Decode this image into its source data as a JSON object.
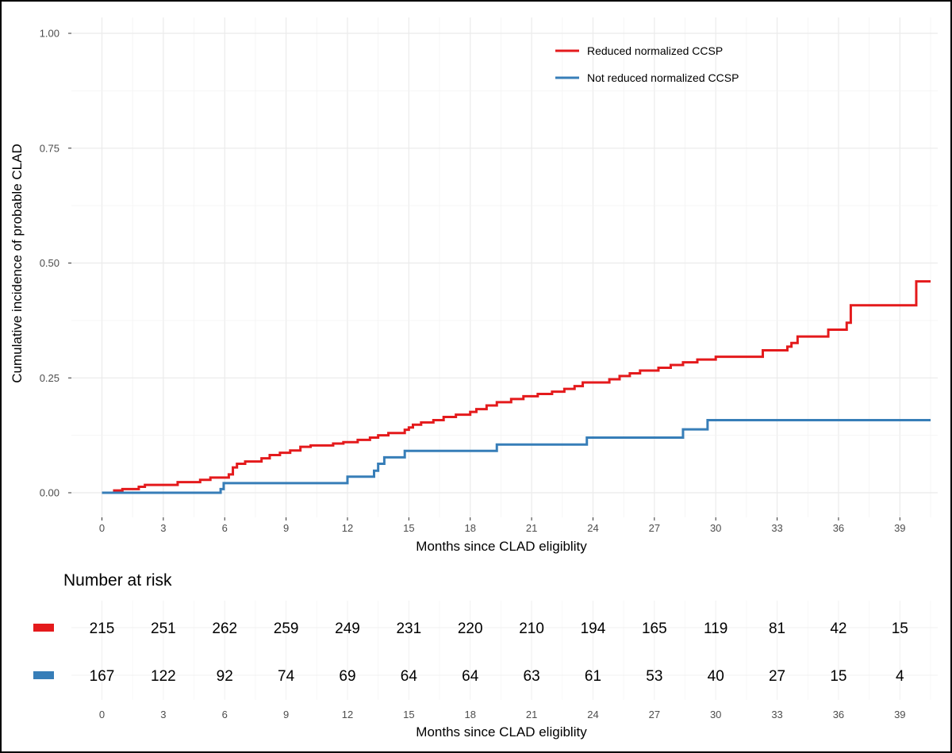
{
  "chart_data": {
    "type": "line",
    "subtype": "step",
    "ylabel": "Cumulative incidence of probable CLAD",
    "xlabel": "Months since CLAD eligiblity",
    "ylim": [
      0,
      1.0
    ],
    "xlim": [
      0,
      40.5
    ],
    "yticks": [
      "0.00",
      "0.25",
      "0.50",
      "0.75",
      "1.00"
    ],
    "ytick_values": [
      0,
      0.25,
      0.5,
      0.75,
      1.0
    ],
    "xticks": [
      "0",
      "3",
      "6",
      "9",
      "12",
      "15",
      "18",
      "21",
      "24",
      "27",
      "30",
      "33",
      "36",
      "39"
    ],
    "xtick_values": [
      0,
      3,
      6,
      9,
      12,
      15,
      18,
      21,
      24,
      27,
      30,
      33,
      36,
      39
    ],
    "legend_position": "top-right",
    "series": [
      {
        "name": "Reduced normalized CCSP",
        "color": "#e41a1c",
        "points": [
          [
            0,
            0
          ],
          [
            0.6,
            0.005
          ],
          [
            1.0,
            0.008
          ],
          [
            1.8,
            0.013
          ],
          [
            2.1,
            0.017
          ],
          [
            3.7,
            0.023
          ],
          [
            4.8,
            0.028
          ],
          [
            5.3,
            0.033
          ],
          [
            6.2,
            0.04
          ],
          [
            6.4,
            0.055
          ],
          [
            6.6,
            0.063
          ],
          [
            7.0,
            0.068
          ],
          [
            7.8,
            0.075
          ],
          [
            8.2,
            0.082
          ],
          [
            8.7,
            0.087
          ],
          [
            9.2,
            0.092
          ],
          [
            9.7,
            0.1
          ],
          [
            10.2,
            0.103
          ],
          [
            11.3,
            0.107
          ],
          [
            11.8,
            0.11
          ],
          [
            12.5,
            0.115
          ],
          [
            13.1,
            0.12
          ],
          [
            13.5,
            0.125
          ],
          [
            14.0,
            0.13
          ],
          [
            14.8,
            0.137
          ],
          [
            15.0,
            0.142
          ],
          [
            15.2,
            0.148
          ],
          [
            15.6,
            0.153
          ],
          [
            16.2,
            0.158
          ],
          [
            16.7,
            0.165
          ],
          [
            17.3,
            0.17
          ],
          [
            18.0,
            0.176
          ],
          [
            18.3,
            0.182
          ],
          [
            18.8,
            0.19
          ],
          [
            19.3,
            0.197
          ],
          [
            20.0,
            0.204
          ],
          [
            20.6,
            0.21
          ],
          [
            21.3,
            0.215
          ],
          [
            22.0,
            0.22
          ],
          [
            22.6,
            0.226
          ],
          [
            23.1,
            0.232
          ],
          [
            23.5,
            0.24
          ],
          [
            24.8,
            0.247
          ],
          [
            25.3,
            0.254
          ],
          [
            25.8,
            0.26
          ],
          [
            26.3,
            0.266
          ],
          [
            27.2,
            0.272
          ],
          [
            27.8,
            0.278
          ],
          [
            28.4,
            0.284
          ],
          [
            29.1,
            0.29
          ],
          [
            30.0,
            0.296
          ],
          [
            32.3,
            0.31
          ],
          [
            33.5,
            0.318
          ],
          [
            33.7,
            0.326
          ],
          [
            34.0,
            0.34
          ],
          [
            35.5,
            0.355
          ],
          [
            36.4,
            0.37
          ],
          [
            36.6,
            0.408
          ],
          [
            39.8,
            0.46
          ],
          [
            40.5,
            0.46
          ]
        ]
      },
      {
        "name": "Not reduced normalized CCSP",
        "color": "#377eb8",
        "points": [
          [
            0,
            0
          ],
          [
            5.8,
            0.008
          ],
          [
            5.95,
            0.021
          ],
          [
            12.0,
            0.035
          ],
          [
            13.3,
            0.048
          ],
          [
            13.5,
            0.063
          ],
          [
            13.8,
            0.077
          ],
          [
            14.8,
            0.091
          ],
          [
            19.3,
            0.105
          ],
          [
            23.7,
            0.12
          ],
          [
            28.4,
            0.138
          ],
          [
            29.6,
            0.158
          ],
          [
            40.5,
            0.158
          ]
        ]
      }
    ]
  },
  "risk_table": {
    "title": "Number at risk",
    "xlabel": "Months since CLAD eligiblity",
    "times": [
      "0",
      "3",
      "6",
      "9",
      "12",
      "15",
      "18",
      "21",
      "24",
      "27",
      "30",
      "33",
      "36",
      "39"
    ],
    "rows": [
      {
        "name": "Reduced normalized CCSP",
        "color": "#e41a1c",
        "counts": [
          "215",
          "251",
          "262",
          "259",
          "249",
          "231",
          "220",
          "210",
          "194",
          "165",
          "119",
          "81",
          "42",
          "15"
        ]
      },
      {
        "name": "Not reduced normalized CCSP",
        "color": "#377eb8",
        "counts": [
          "167",
          "122",
          "92",
          "74",
          "69",
          "64",
          "64",
          "63",
          "61",
          "53",
          "40",
          "27",
          "15",
          "4"
        ]
      }
    ]
  }
}
